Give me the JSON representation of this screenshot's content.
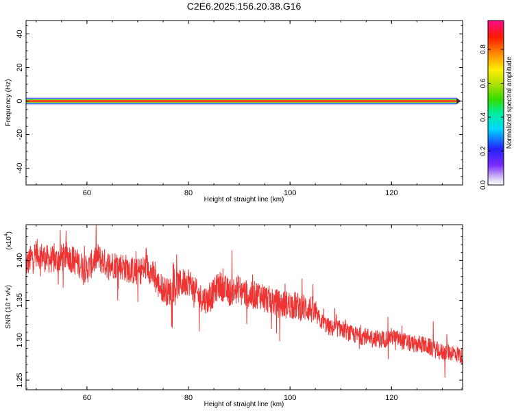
{
  "title": "C2E6.2025.156.20.38.G16",
  "chart_data": [
    {
      "type": "heatmap",
      "xlabel": "Height of straight line (km)",
      "ylabel": "Frequency (Hz)",
      "xlim": [
        48,
        134
      ],
      "ylim": [
        -50,
        48
      ],
      "xticks": [
        "60",
        "80",
        "100",
        "120"
      ],
      "yticks": [
        "-40",
        "-20",
        "0",
        "20",
        "40"
      ],
      "band_center_hz": 0,
      "band_halfwidth_hz": 2,
      "colorbar": {
        "label": "Normalized spectral amplitude",
        "range": [
          0,
          0.97
        ],
        "ticks": [
          "0.0",
          "0.2",
          "0.4",
          "0.6",
          "0.8"
        ]
      }
    },
    {
      "type": "line",
      "xlabel": "Height of straight line (km)",
      "ylabel": "SNR (10 * v/v)",
      "yscale_label": "(x10",
      "yscale_exp": "4",
      "xlim": [
        48,
        134
      ],
      "ylim": [
        12380,
        14450
      ],
      "xticks": [
        "60",
        "80",
        "100",
        "120"
      ],
      "yticks": [
        "1.25",
        "1.30",
        "1.35",
        "1.40"
      ],
      "color": "#ee3333",
      "series": [
        {
          "x": [
            48,
            50,
            52,
            54,
            56,
            58,
            60,
            62,
            64,
            66,
            68,
            70,
            72,
            74,
            76,
            78,
            80,
            82,
            84,
            86,
            88,
            90,
            92,
            94,
            96,
            98,
            100,
            102,
            104,
            106,
            108,
            110,
            112,
            114,
            116,
            118,
            120,
            122,
            124,
            126,
            128,
            130,
            132,
            134
          ],
          "y": [
            13950,
            14100,
            14020,
            14000,
            14060,
            13980,
            13880,
            14050,
            13950,
            13950,
            13900,
            13850,
            13930,
            13700,
            13600,
            13700,
            13750,
            13550,
            13500,
            13700,
            13600,
            13650,
            13550,
            13580,
            13500,
            13450,
            13450,
            13420,
            13400,
            13250,
            13150,
            13150,
            13080,
            13050,
            13050,
            13000,
            13050,
            13000,
            12950,
            12950,
            12900,
            12850,
            12850,
            12800
          ]
        }
      ]
    }
  ]
}
